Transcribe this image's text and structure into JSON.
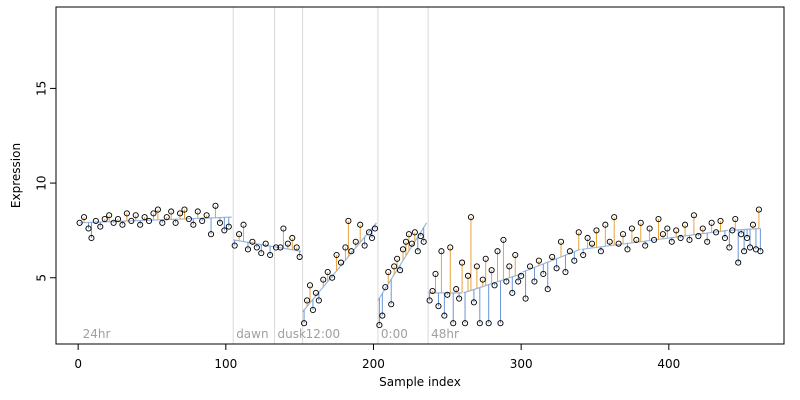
{
  "chart_data": {
    "type": "scatter",
    "xlabel": "Sample index",
    "ylabel": "Expression",
    "xlim": [
      -15,
      478
    ],
    "ylim": [
      1.5,
      19.3
    ],
    "xticks": [
      0,
      100,
      200,
      300,
      400
    ],
    "yticks": [
      5,
      10,
      15
    ],
    "phases": [
      {
        "x": 105,
        "label": "dawn"
      },
      {
        "x": 133,
        "label": "dusk"
      },
      {
        "x": 152,
        "label": "12:00"
      },
      {
        "x": 203,
        "label": "0:00"
      },
      {
        "x": 237,
        "label": "48hr"
      }
    ],
    "start_label": "24hr",
    "fit_segments": [
      {
        "x0": 1,
        "x1": 104,
        "from": 7.9,
        "to": 8.2
      },
      {
        "x0": 105,
        "x1": 151,
        "from": 7.0,
        "to": 6.4
      },
      {
        "x0": 152,
        "x1": 202,
        "from": 3.2,
        "to": 7.9
      },
      {
        "x0": 203,
        "x1": 236,
        "from": 3.8,
        "to": 7.9
      },
      {
        "x0": 237,
        "x1": 260,
        "from": 4.2,
        "to": 4.2
      },
      {
        "x0": 261,
        "x1": 300,
        "from": 4.2,
        "to": 5.2
      },
      {
        "x0": 301,
        "x1": 340,
        "from": 5.3,
        "to": 6.5
      },
      {
        "x0": 341,
        "x1": 440,
        "from": 6.5,
        "to": 7.5
      },
      {
        "x0": 441,
        "x1": 462,
        "from": 7.5,
        "to": 7.6
      }
    ],
    "samples": [
      {
        "x": 1,
        "y": 7.9
      },
      {
        "x": 4,
        "y": 8.2
      },
      {
        "x": 7,
        "y": 7.6
      },
      {
        "x": 9,
        "y": 7.1
      },
      {
        "x": 12,
        "y": 8.0
      },
      {
        "x": 15,
        "y": 7.7
      },
      {
        "x": 18,
        "y": 8.1
      },
      {
        "x": 21,
        "y": 8.3
      },
      {
        "x": 24,
        "y": 7.9
      },
      {
        "x": 27,
        "y": 8.1
      },
      {
        "x": 30,
        "y": 7.8
      },
      {
        "x": 33,
        "y": 8.4
      },
      {
        "x": 36,
        "y": 8.0
      },
      {
        "x": 39,
        "y": 8.3
      },
      {
        "x": 42,
        "y": 7.8
      },
      {
        "x": 45,
        "y": 8.2
      },
      {
        "x": 48,
        "y": 8.0
      },
      {
        "x": 51,
        "y": 8.4
      },
      {
        "x": 54,
        "y": 8.6
      },
      {
        "x": 57,
        "y": 7.9
      },
      {
        "x": 60,
        "y": 8.2
      },
      {
        "x": 63,
        "y": 8.5
      },
      {
        "x": 66,
        "y": 7.9
      },
      {
        "x": 69,
        "y": 8.4
      },
      {
        "x": 72,
        "y": 8.6
      },
      {
        "x": 75,
        "y": 8.1
      },
      {
        "x": 78,
        "y": 7.8
      },
      {
        "x": 81,
        "y": 8.5
      },
      {
        "x": 84,
        "y": 8.0
      },
      {
        "x": 87,
        "y": 8.3
      },
      {
        "x": 90,
        "y": 7.3
      },
      {
        "x": 93,
        "y": 8.8
      },
      {
        "x": 96,
        "y": 7.9
      },
      {
        "x": 99,
        "y": 7.5
      },
      {
        "x": 102,
        "y": 7.7
      },
      {
        "x": 106,
        "y": 6.7
      },
      {
        "x": 109,
        "y": 7.3
      },
      {
        "x": 112,
        "y": 7.8
      },
      {
        "x": 115,
        "y": 6.5
      },
      {
        "x": 118,
        "y": 6.9
      },
      {
        "x": 121,
        "y": 6.6
      },
      {
        "x": 124,
        "y": 6.3
      },
      {
        "x": 127,
        "y": 6.8
      },
      {
        "x": 130,
        "y": 6.2
      },
      {
        "x": 134,
        "y": 6.6
      },
      {
        "x": 137,
        "y": 6.6
      },
      {
        "x": 139,
        "y": 7.6
      },
      {
        "x": 142,
        "y": 6.8
      },
      {
        "x": 145,
        "y": 7.1
      },
      {
        "x": 148,
        "y": 6.6
      },
      {
        "x": 150,
        "y": 6.1
      },
      {
        "x": 153,
        "y": 2.6
      },
      {
        "x": 155,
        "y": 3.8
      },
      {
        "x": 157,
        "y": 4.6
      },
      {
        "x": 159,
        "y": 3.3
      },
      {
        "x": 161,
        "y": 4.2
      },
      {
        "x": 163,
        "y": 3.8
      },
      {
        "x": 166,
        "y": 4.9
      },
      {
        "x": 169,
        "y": 5.3
      },
      {
        "x": 172,
        "y": 5.0
      },
      {
        "x": 175,
        "y": 6.2
      },
      {
        "x": 178,
        "y": 5.8
      },
      {
        "x": 181,
        "y": 6.6
      },
      {
        "x": 183,
        "y": 8.0
      },
      {
        "x": 185,
        "y": 6.4
      },
      {
        "x": 188,
        "y": 6.9
      },
      {
        "x": 191,
        "y": 7.8
      },
      {
        "x": 194,
        "y": 6.7
      },
      {
        "x": 197,
        "y": 7.4
      },
      {
        "x": 199,
        "y": 7.1
      },
      {
        "x": 201,
        "y": 7.6
      },
      {
        "x": 204,
        "y": 2.5
      },
      {
        "x": 206,
        "y": 3.0
      },
      {
        "x": 208,
        "y": 4.5
      },
      {
        "x": 210,
        "y": 5.3
      },
      {
        "x": 212,
        "y": 3.6
      },
      {
        "x": 214,
        "y": 5.6
      },
      {
        "x": 216,
        "y": 6.0
      },
      {
        "x": 218,
        "y": 5.4
      },
      {
        "x": 220,
        "y": 6.5
      },
      {
        "x": 222,
        "y": 6.9
      },
      {
        "x": 224,
        "y": 7.3
      },
      {
        "x": 226,
        "y": 6.8
      },
      {
        "x": 228,
        "y": 7.4
      },
      {
        "x": 230,
        "y": 6.4
      },
      {
        "x": 232,
        "y": 7.2
      },
      {
        "x": 234,
        "y": 6.9
      },
      {
        "x": 238,
        "y": 3.8
      },
      {
        "x": 240,
        "y": 4.3
      },
      {
        "x": 242,
        "y": 5.2
      },
      {
        "x": 244,
        "y": 3.5
      },
      {
        "x": 246,
        "y": 6.4
      },
      {
        "x": 248,
        "y": 3.0
      },
      {
        "x": 250,
        "y": 4.1
      },
      {
        "x": 252,
        "y": 6.6
      },
      {
        "x": 254,
        "y": 2.6
      },
      {
        "x": 256,
        "y": 4.4
      },
      {
        "x": 258,
        "y": 3.9
      },
      {
        "x": 260,
        "y": 5.8
      },
      {
        "x": 262,
        "y": 2.6
      },
      {
        "x": 264,
        "y": 5.1
      },
      {
        "x": 266,
        "y": 8.2
      },
      {
        "x": 268,
        "y": 3.7
      },
      {
        "x": 270,
        "y": 5.6
      },
      {
        "x": 272,
        "y": 2.6
      },
      {
        "x": 274,
        "y": 4.9
      },
      {
        "x": 276,
        "y": 6.0
      },
      {
        "x": 278,
        "y": 2.6
      },
      {
        "x": 280,
        "y": 5.4
      },
      {
        "x": 282,
        "y": 4.6
      },
      {
        "x": 284,
        "y": 6.4
      },
      {
        "x": 286,
        "y": 2.6
      },
      {
        "x": 288,
        "y": 7.0
      },
      {
        "x": 290,
        "y": 4.8
      },
      {
        "x": 292,
        "y": 5.6
      },
      {
        "x": 294,
        "y": 4.2
      },
      {
        "x": 296,
        "y": 6.2
      },
      {
        "x": 298,
        "y": 4.8
      },
      {
        "x": 300,
        "y": 5.1
      },
      {
        "x": 303,
        "y": 3.9
      },
      {
        "x": 306,
        "y": 5.6
      },
      {
        "x": 309,
        "y": 4.8
      },
      {
        "x": 312,
        "y": 5.9
      },
      {
        "x": 315,
        "y": 5.2
      },
      {
        "x": 318,
        "y": 4.4
      },
      {
        "x": 321,
        "y": 6.1
      },
      {
        "x": 324,
        "y": 5.5
      },
      {
        "x": 327,
        "y": 6.9
      },
      {
        "x": 330,
        "y": 5.3
      },
      {
        "x": 333,
        "y": 6.4
      },
      {
        "x": 336,
        "y": 5.9
      },
      {
        "x": 339,
        "y": 7.4
      },
      {
        "x": 342,
        "y": 6.2
      },
      {
        "x": 345,
        "y": 7.1
      },
      {
        "x": 348,
        "y": 6.8
      },
      {
        "x": 351,
        "y": 7.5
      },
      {
        "x": 354,
        "y": 6.4
      },
      {
        "x": 357,
        "y": 7.8
      },
      {
        "x": 360,
        "y": 6.9
      },
      {
        "x": 363,
        "y": 8.2
      },
      {
        "x": 366,
        "y": 6.8
      },
      {
        "x": 369,
        "y": 7.3
      },
      {
        "x": 372,
        "y": 6.5
      },
      {
        "x": 375,
        "y": 7.6
      },
      {
        "x": 378,
        "y": 7.0
      },
      {
        "x": 381,
        "y": 7.9
      },
      {
        "x": 384,
        "y": 6.7
      },
      {
        "x": 387,
        "y": 7.6
      },
      {
        "x": 390,
        "y": 7.0
      },
      {
        "x": 393,
        "y": 8.1
      },
      {
        "x": 396,
        "y": 7.3
      },
      {
        "x": 399,
        "y": 7.6
      },
      {
        "x": 402,
        "y": 6.9
      },
      {
        "x": 405,
        "y": 7.5
      },
      {
        "x": 408,
        "y": 7.1
      },
      {
        "x": 411,
        "y": 7.8
      },
      {
        "x": 414,
        "y": 7.0
      },
      {
        "x": 417,
        "y": 8.3
      },
      {
        "x": 420,
        "y": 7.2
      },
      {
        "x": 423,
        "y": 7.6
      },
      {
        "x": 426,
        "y": 6.9
      },
      {
        "x": 429,
        "y": 7.9
      },
      {
        "x": 432,
        "y": 7.4
      },
      {
        "x": 435,
        "y": 8.0
      },
      {
        "x": 438,
        "y": 7.1
      },
      {
        "x": 441,
        "y": 6.6
      },
      {
        "x": 443,
        "y": 7.5
      },
      {
        "x": 445,
        "y": 8.1
      },
      {
        "x": 447,
        "y": 5.8
      },
      {
        "x": 449,
        "y": 7.3
      },
      {
        "x": 451,
        "y": 6.4
      },
      {
        "x": 453,
        "y": 7.1
      },
      {
        "x": 455,
        "y": 6.6
      },
      {
        "x": 457,
        "y": 7.8
      },
      {
        "x": 459,
        "y": 6.5
      },
      {
        "x": 461,
        "y": 8.6
      },
      {
        "x": 462,
        "y": 6.4
      }
    ],
    "colors": {
      "above_fit": "#e8a33d",
      "below_fit": "#6d96d6",
      "fit_line": "#9ab8e6",
      "phase_line": "#d9d9d9",
      "point_stroke": "#000000",
      "axis": "#000000"
    },
    "grid": false,
    "legend": "none"
  }
}
